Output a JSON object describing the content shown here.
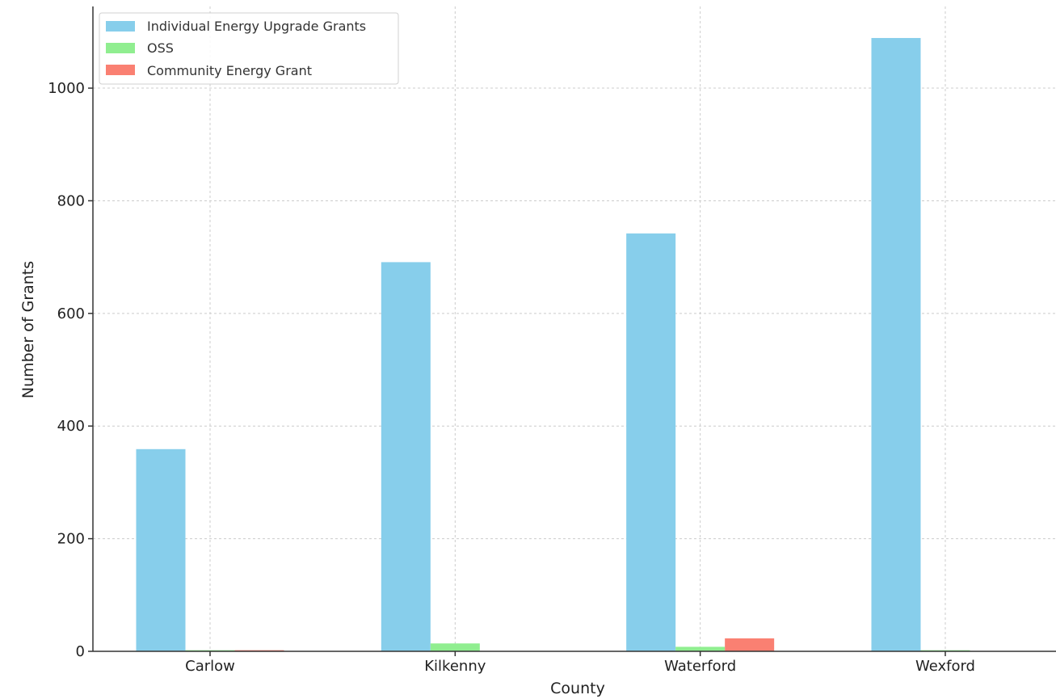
{
  "chart_data": {
    "type": "bar",
    "title": "",
    "xlabel": "County",
    "ylabel": "Number of Grants",
    "categories": [
      "Carlow",
      "Kilkenny",
      "Waterford",
      "Wexford"
    ],
    "series": [
      {
        "name": "Individual Energy Upgrade Grants",
        "color": "#87CEEB",
        "values": [
          359,
          691,
          742,
          1089
        ]
      },
      {
        "name": "OSS",
        "color": "#90EE90",
        "values": [
          2,
          14,
          8,
          2
        ]
      },
      {
        "name": "Community Energy Grant",
        "color": "#FA8072",
        "values": [
          2,
          0,
          23,
          0
        ]
      }
    ],
    "ylim": [
      0,
      1145
    ],
    "yticks": [
      0,
      200,
      400,
      600,
      800,
      1000
    ],
    "grid": true,
    "legend_position": "top-left"
  }
}
